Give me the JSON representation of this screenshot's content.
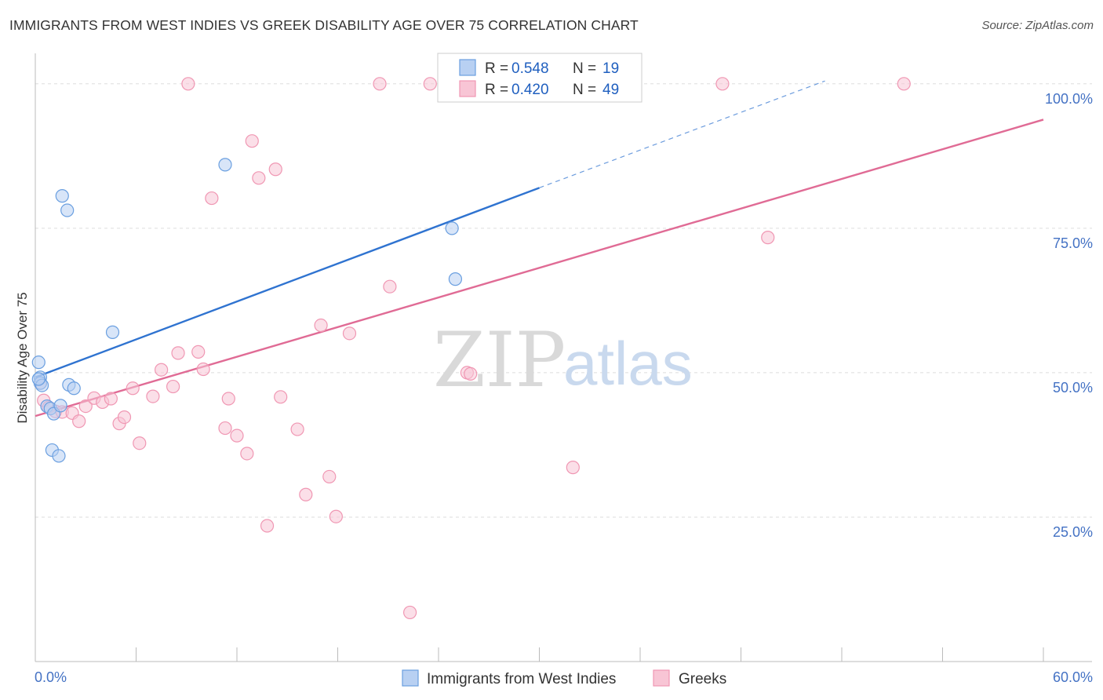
{
  "title": "IMMIGRANTS FROM WEST INDIES VS GREEK DISABILITY AGE OVER 75 CORRELATION CHART",
  "source": "Source: ZipAtlas.com",
  "watermark": {
    "zip": "ZIP",
    "atlas": "atlas"
  },
  "legend_top": [
    {
      "r_label": "R =",
      "r_value": "0.548",
      "n_label": "N =",
      "n_value": "19"
    },
    {
      "r_label": "R =",
      "r_value": "0.420",
      "n_label": "N =",
      "n_value": "49"
    }
  ],
  "chart_data": {
    "type": "scatter",
    "title": "IMMIGRANTS FROM WEST INDIES VS GREEK DISABILITY AGE OVER 75 CORRELATION CHART",
    "xlabel": "",
    "ylabel": "Disability Age Over 75",
    "xlim": [
      0,
      60
    ],
    "ylim": [
      0,
      105
    ],
    "x_tick_labels": [
      {
        "value": 0,
        "label": "0.0%"
      },
      {
        "value": 60,
        "label": "60.0%"
      }
    ],
    "y_tick_labels": [
      {
        "value": 25,
        "label": "25.0%"
      },
      {
        "value": 50,
        "label": "50.0%"
      },
      {
        "value": 75,
        "label": "75.0%"
      },
      {
        "value": 100,
        "label": "100.0%"
      }
    ],
    "grid": true,
    "legend_position": "top-center",
    "series": [
      {
        "name": "Immigrants from West Indies",
        "color": "#6a9fe0",
        "fill": "#b8d0f2",
        "line_color": "#2f73d0",
        "trend": {
          "x0": 0,
          "y0": 49.2,
          "x1": 30,
          "y1": 82.0,
          "dash_to_x": 47,
          "dash_to_y": 100.5
        },
        "points": [
          [
            0.2,
            51.8
          ],
          [
            0.3,
            49.2
          ],
          [
            0.3,
            48.2
          ],
          [
            0.4,
            47.8
          ],
          [
            0.7,
            44.2
          ],
          [
            0.9,
            43.8
          ],
          [
            1.1,
            42.9
          ],
          [
            1.0,
            36.6
          ],
          [
            1.4,
            35.6
          ],
          [
            1.5,
            44.3
          ],
          [
            2.0,
            47.9
          ],
          [
            2.3,
            47.3
          ],
          [
            1.6,
            80.6
          ],
          [
            1.9,
            78.1
          ],
          [
            4.6,
            57.0
          ],
          [
            11.3,
            86.0
          ],
          [
            24.8,
            75.0
          ],
          [
            25.0,
            66.2
          ],
          [
            0.2,
            48.9
          ]
        ]
      },
      {
        "name": "Greeks",
        "color": "#f097b3",
        "fill": "#f8c5d5",
        "line_color": "#e06b95",
        "trend": {
          "x0": 0,
          "y0": 42.5,
          "x1": 60,
          "y1": 93.8
        },
        "points": [
          [
            0.3,
            48.2
          ],
          [
            0.5,
            45.2
          ],
          [
            0.8,
            44.0
          ],
          [
            1.2,
            43.3
          ],
          [
            1.6,
            43.2
          ],
          [
            2.2,
            43.0
          ],
          [
            2.6,
            41.6
          ],
          [
            3.0,
            44.2
          ],
          [
            3.5,
            45.6
          ],
          [
            4.0,
            44.9
          ],
          [
            4.5,
            45.5
          ],
          [
            5.0,
            41.2
          ],
          [
            5.3,
            42.3
          ],
          [
            5.8,
            47.3
          ],
          [
            6.2,
            37.8
          ],
          [
            7.0,
            45.9
          ],
          [
            7.5,
            50.5
          ],
          [
            8.2,
            47.6
          ],
          [
            8.5,
            53.4
          ],
          [
            9.1,
            100.0
          ],
          [
            9.7,
            53.6
          ],
          [
            10.0,
            50.6
          ],
          [
            10.5,
            80.2
          ],
          [
            11.3,
            40.4
          ],
          [
            11.5,
            45.5
          ],
          [
            12.0,
            39.1
          ],
          [
            12.6,
            36.0
          ],
          [
            12.9,
            90.1
          ],
          [
            13.3,
            83.7
          ],
          [
            13.8,
            23.5
          ],
          [
            14.3,
            85.2
          ],
          [
            14.6,
            45.8
          ],
          [
            15.6,
            40.2
          ],
          [
            16.1,
            28.9
          ],
          [
            17.0,
            58.2
          ],
          [
            17.5,
            32.0
          ],
          [
            17.9,
            25.1
          ],
          [
            18.7,
            56.8
          ],
          [
            20.5,
            100.0
          ],
          [
            21.1,
            64.9
          ],
          [
            22.3,
            8.5
          ],
          [
            23.5,
            100.0
          ],
          [
            24.5,
            100.0
          ],
          [
            25.7,
            50.0
          ],
          [
            25.9,
            49.8
          ],
          [
            32.0,
            33.6
          ],
          [
            40.9,
            100.0
          ],
          [
            43.6,
            73.4
          ],
          [
            51.7,
            100.0
          ]
        ]
      }
    ]
  }
}
